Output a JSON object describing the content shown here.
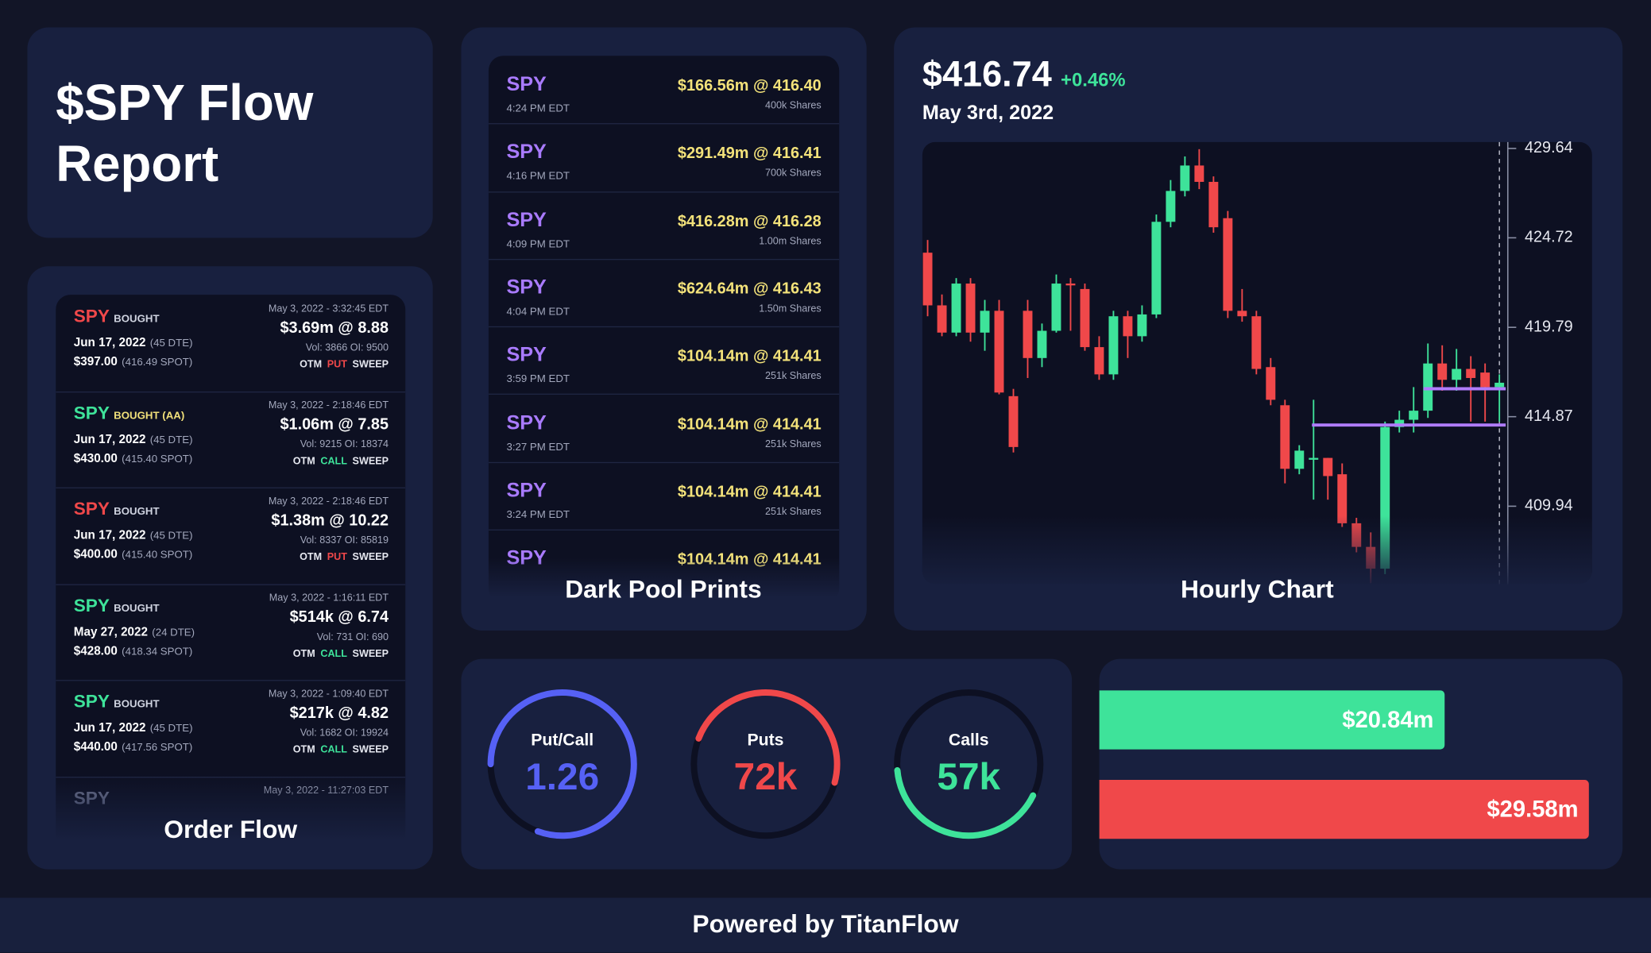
{
  "header": {
    "title": "$SPY Flow Report"
  },
  "order_flow": {
    "label": "Order Flow",
    "items": [
      {
        "ticker": "SPY",
        "action": "BOUGHT",
        "expiry": "Jun 17, 2022",
        "dte": "(45 DTE)",
        "strike": "$397.00",
        "spot": "(416.49 SPOT)",
        "time": "May 3, 2022 - 3:32:45 EDT",
        "premium": "$3.69m @ 8.88",
        "volume": "Vol: 3866 OI: 9500",
        "tags": [
          "OTM",
          "PUT",
          "SWEEP"
        ]
      },
      {
        "ticker": "SPY",
        "action": "BOUGHT (AA)",
        "expiry": "Jun 17, 2022",
        "dte": "(45 DTE)",
        "strike": "$430.00",
        "spot": "(415.40 SPOT)",
        "time": "May 3, 2022 - 2:18:46 EDT",
        "premium": "$1.06m @ 7.85",
        "volume": "Vol: 9215 OI: 18374",
        "tags": [
          "OTM",
          "CALL",
          "SWEEP"
        ]
      },
      {
        "ticker": "SPY",
        "action": "BOUGHT",
        "expiry": "Jun 17, 2022",
        "dte": "(45 DTE)",
        "strike": "$400.00",
        "spot": "(415.40 SPOT)",
        "time": "May 3, 2022 - 2:18:46 EDT",
        "premium": "$1.38m @ 10.22",
        "volume": "Vol: 8337 OI: 85819",
        "tags": [
          "OTM",
          "PUT",
          "SWEEP"
        ]
      },
      {
        "ticker": "SPY",
        "action": "BOUGHT",
        "expiry": "May 27, 2022",
        "dte": "(24 DTE)",
        "strike": "$428.00",
        "spot": "(418.34 SPOT)",
        "time": "May 3, 2022 - 1:16:11 EDT",
        "premium": "$514k @ 6.74",
        "volume": "Vol: 731 OI: 690",
        "tags": [
          "OTM",
          "CALL",
          "SWEEP"
        ]
      },
      {
        "ticker": "SPY",
        "action": "BOUGHT",
        "expiry": "Jun 17, 2022",
        "dte": "(45 DTE)",
        "strike": "$440.00",
        "spot": "(417.56 SPOT)",
        "time": "May 3, 2022 - 1:09:40 EDT",
        "premium": "$217k @ 4.82",
        "volume": "Vol: 1682 OI: 19924",
        "tags": [
          "OTM",
          "CALL",
          "SWEEP"
        ]
      },
      {
        "ticker": "SPY",
        "time": "May 3, 2022 - 11:27:03 EDT"
      }
    ]
  },
  "dark_pool": {
    "label": "Dark Pool Prints",
    "items": [
      {
        "ticker": "SPY",
        "time": "4:24 PM EDT",
        "amount": "$166.56m @ 416.40",
        "shares": "400k Shares"
      },
      {
        "ticker": "SPY",
        "time": "4:16 PM EDT",
        "amount": "$291.49m @ 416.41",
        "shares": "700k Shares"
      },
      {
        "ticker": "SPY",
        "time": "4:09 PM EDT",
        "amount": "$416.28m @ 416.28",
        "shares": "1.00m Shares"
      },
      {
        "ticker": "SPY",
        "time": "4:04 PM EDT",
        "amount": "$624.64m @ 416.43",
        "shares": "1.50m Shares"
      },
      {
        "ticker": "SPY",
        "time": "3:59 PM EDT",
        "amount": "$104.14m @ 414.41",
        "shares": "251k Shares"
      },
      {
        "ticker": "SPY",
        "time": "3:27 PM EDT",
        "amount": "$104.14m @ 414.41",
        "shares": "251k Shares"
      },
      {
        "ticker": "SPY",
        "time": "3:24 PM EDT",
        "amount": "$104.14m @ 414.41",
        "shares": "251k Shares"
      },
      {
        "ticker": "SPY",
        "amount": "$104.14m @ 414.41"
      }
    ]
  },
  "hourly_chart": {
    "type": "candlestick",
    "price": "$416.74",
    "change": "+0.46%",
    "date": "May 3rd, 2022",
    "label": "Hourly Chart",
    "ylim": [
      405.65,
      429.99
    ],
    "yticks": [
      429.64,
      424.72,
      419.79,
      414.87,
      409.94
    ],
    "levels": [
      416.41,
      414.41
    ],
    "candles": [
      [
        423.9,
        424.6,
        420.4,
        421.0
      ],
      [
        421.0,
        421.6,
        419.3,
        419.5
      ],
      [
        419.5,
        422.5,
        419.3,
        422.2
      ],
      [
        422.2,
        422.5,
        419.0,
        419.5
      ],
      [
        419.5,
        421.3,
        418.5,
        420.7
      ],
      [
        420.7,
        421.3,
        416.1,
        416.2
      ],
      [
        416.0,
        416.4,
        412.9,
        413.2
      ],
      [
        420.7,
        421.3,
        417.0,
        418.1
      ],
      [
        418.1,
        420.0,
        417.6,
        419.6
      ],
      [
        419.6,
        422.7,
        419.5,
        422.2
      ],
      [
        422.2,
        422.5,
        419.6,
        422.1
      ],
      [
        421.9,
        422.2,
        418.5,
        418.7
      ],
      [
        418.7,
        419.3,
        416.9,
        417.2
      ],
      [
        417.2,
        420.7,
        416.9,
        420.4
      ],
      [
        420.4,
        420.7,
        418.1,
        419.3
      ],
      [
        419.3,
        421.0,
        419.0,
        420.5
      ],
      [
        420.5,
        426.0,
        420.3,
        425.6
      ],
      [
        425.6,
        427.9,
        425.3,
        427.3
      ],
      [
        427.3,
        429.2,
        427.0,
        428.7
      ],
      [
        428.7,
        429.6,
        427.4,
        427.8
      ],
      [
        427.8,
        428.1,
        425.0,
        425.3
      ],
      [
        425.8,
        426.2,
        420.3,
        420.7
      ],
      [
        420.7,
        421.9,
        420.1,
        420.4
      ],
      [
        420.4,
        420.7,
        417.2,
        417.5
      ],
      [
        417.6,
        418.1,
        415.5,
        415.8
      ],
      [
        415.5,
        415.8,
        411.2,
        412.0
      ],
      [
        412.0,
        413.3,
        411.7,
        413.0
      ],
      [
        412.5,
        415.8,
        410.3,
        412.6
      ],
      [
        412.6,
        412.6,
        410.3,
        411.6
      ],
      [
        411.7,
        412.3,
        408.8,
        409.0
      ],
      [
        409.0,
        409.3,
        407.4,
        407.7
      ],
      [
        407.7,
        408.5,
        405.7,
        406.5
      ],
      [
        406.5,
        414.6,
        406.2,
        414.3
      ],
      [
        414.3,
        415.2,
        414.0,
        414.7
      ],
      [
        414.7,
        416.5,
        414.0,
        415.2
      ],
      [
        415.2,
        418.9,
        414.8,
        417.8
      ],
      [
        417.8,
        418.8,
        416.3,
        416.9
      ],
      [
        416.9,
        418.6,
        416.3,
        417.5
      ],
      [
        417.5,
        418.2,
        414.6,
        417.0
      ],
      [
        417.3,
        417.8,
        414.6,
        416.5
      ],
      [
        416.5,
        417.2,
        414.6,
        416.74
      ]
    ]
  },
  "gauges": [
    {
      "label": "Put/Call",
      "value": 1.26
    },
    {
      "label": "Puts",
      "value": "72k"
    },
    {
      "label": "Calls",
      "value": "57k"
    }
  ],
  "bars": [
    {
      "value": 20.84,
      "label": "$20.84m"
    },
    {
      "value": 29.58,
      "label": "$29.58m"
    }
  ],
  "footer": {
    "text": "Powered by TitanFlow"
  }
}
